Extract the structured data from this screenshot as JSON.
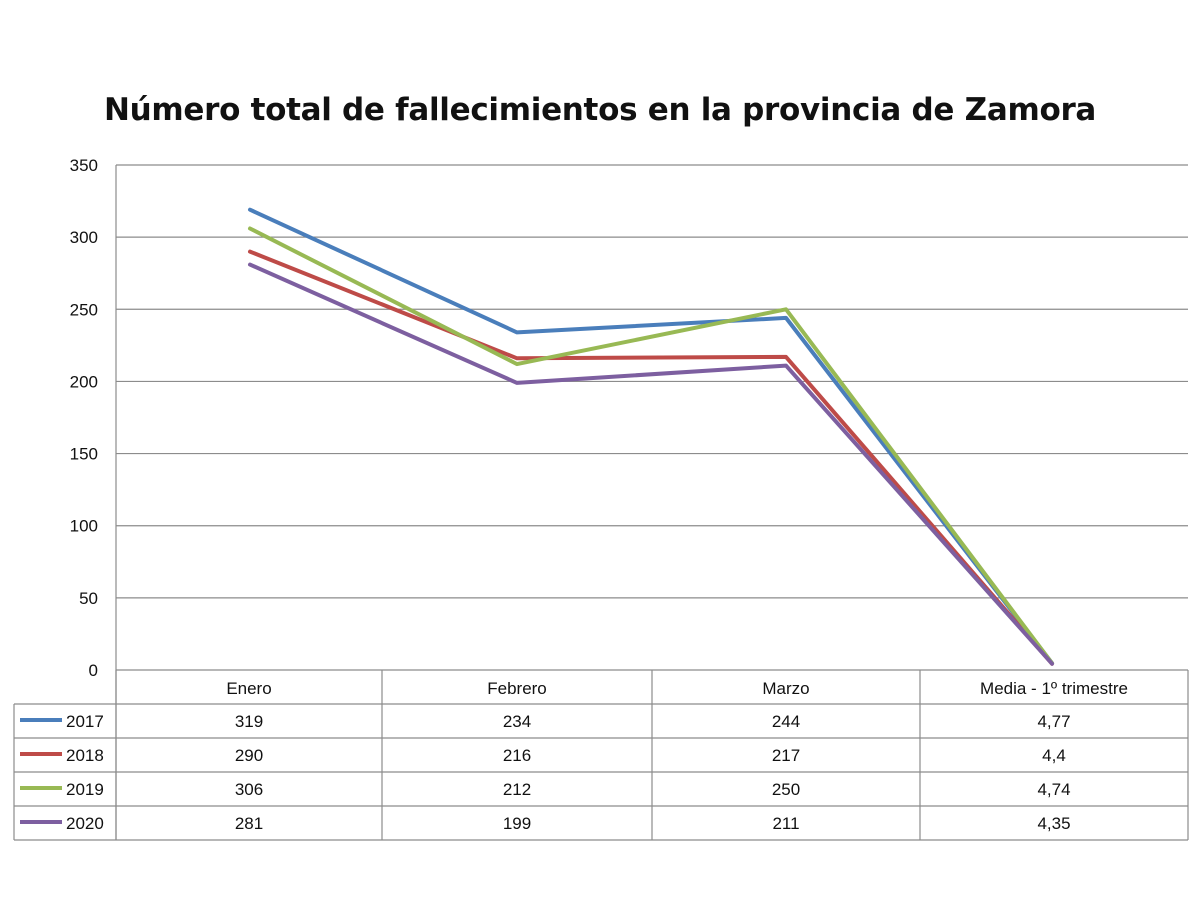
{
  "chart_data": {
    "type": "line",
    "title": "Número total de fallecimientos en la provincia de Zamora",
    "categories": [
      "Enero",
      "Febrero",
      "Marzo",
      "Media - 1º trimestre"
    ],
    "series": [
      {
        "name": "2017",
        "color": "#4a7ebb",
        "values": [
          319,
          234,
          244,
          4.77
        ],
        "labels": [
          "319",
          "234",
          "244",
          "4,77"
        ]
      },
      {
        "name": "2018",
        "color": "#be4b48",
        "values": [
          290,
          216,
          217,
          4.4
        ],
        "labels": [
          "290",
          "216",
          "217",
          "4,4"
        ]
      },
      {
        "name": "2019",
        "color": "#98b954",
        "values": [
          306,
          212,
          250,
          4.74
        ],
        "labels": [
          "306",
          "212",
          "250",
          "4,74"
        ]
      },
      {
        "name": "2020",
        "color": "#7d5fa0",
        "values": [
          281,
          199,
          211,
          4.35
        ],
        "labels": [
          "281",
          "199",
          "211",
          "4,35"
        ]
      }
    ],
    "y_ticks": [
      "0",
      "50",
      "100",
      "150",
      "200",
      "250",
      "300",
      "350"
    ],
    "ylim": [
      0,
      350
    ],
    "grid": true,
    "legend": "data-table"
  }
}
